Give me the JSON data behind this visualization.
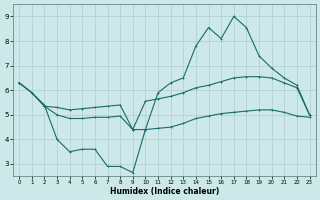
{
  "xlabel": "Humidex (Indice chaleur)",
  "bg_color": "#cce8e8",
  "line_color": "#1a6b6b",
  "grid_color": "#b0cccc",
  "xlim": [
    -0.5,
    23.5
  ],
  "ylim": [
    2.5,
    9.5
  ],
  "xticks": [
    0,
    1,
    2,
    3,
    4,
    5,
    6,
    7,
    8,
    9,
    10,
    11,
    12,
    13,
    14,
    15,
    16,
    17,
    18,
    19,
    20,
    21,
    22,
    23
  ],
  "yticks": [
    3,
    4,
    5,
    6,
    7,
    8,
    9
  ],
  "line1_x": [
    0,
    1,
    2,
    3,
    4,
    5,
    6,
    7,
    8,
    9,
    10,
    11,
    12,
    13,
    14,
    15,
    16,
    17,
    18,
    19,
    20,
    21,
    22,
    23
  ],
  "line1_y": [
    6.3,
    5.9,
    5.4,
    4.0,
    3.5,
    3.6,
    3.6,
    2.9,
    2.9,
    2.65,
    4.4,
    5.9,
    6.3,
    6.5,
    7.8,
    8.55,
    8.1,
    9.0,
    8.55,
    7.4,
    6.9,
    6.5,
    6.2,
    5.0
  ],
  "line2_x": [
    0,
    1,
    2,
    3,
    4,
    5,
    6,
    7,
    8,
    9,
    10,
    11,
    12,
    13,
    14,
    15,
    16,
    17,
    18,
    19,
    20,
    21,
    22,
    23
  ],
  "line2_y": [
    6.3,
    5.9,
    5.35,
    5.3,
    5.2,
    5.25,
    5.3,
    5.35,
    5.4,
    4.4,
    5.55,
    5.65,
    5.75,
    5.9,
    6.1,
    6.2,
    6.35,
    6.5,
    6.55,
    6.55,
    6.5,
    6.3,
    6.1,
    5.0
  ],
  "line3_x": [
    0,
    1,
    2,
    3,
    4,
    5,
    6,
    7,
    8,
    9,
    10,
    11,
    12,
    13,
    14,
    15,
    16,
    17,
    18,
    19,
    20,
    21,
    22,
    23
  ],
  "line3_y": [
    6.3,
    5.9,
    5.35,
    5.0,
    4.85,
    4.85,
    4.9,
    4.9,
    4.95,
    4.4,
    4.4,
    4.45,
    4.5,
    4.65,
    4.85,
    4.95,
    5.05,
    5.1,
    5.15,
    5.2,
    5.2,
    5.1,
    4.95,
    4.9
  ]
}
